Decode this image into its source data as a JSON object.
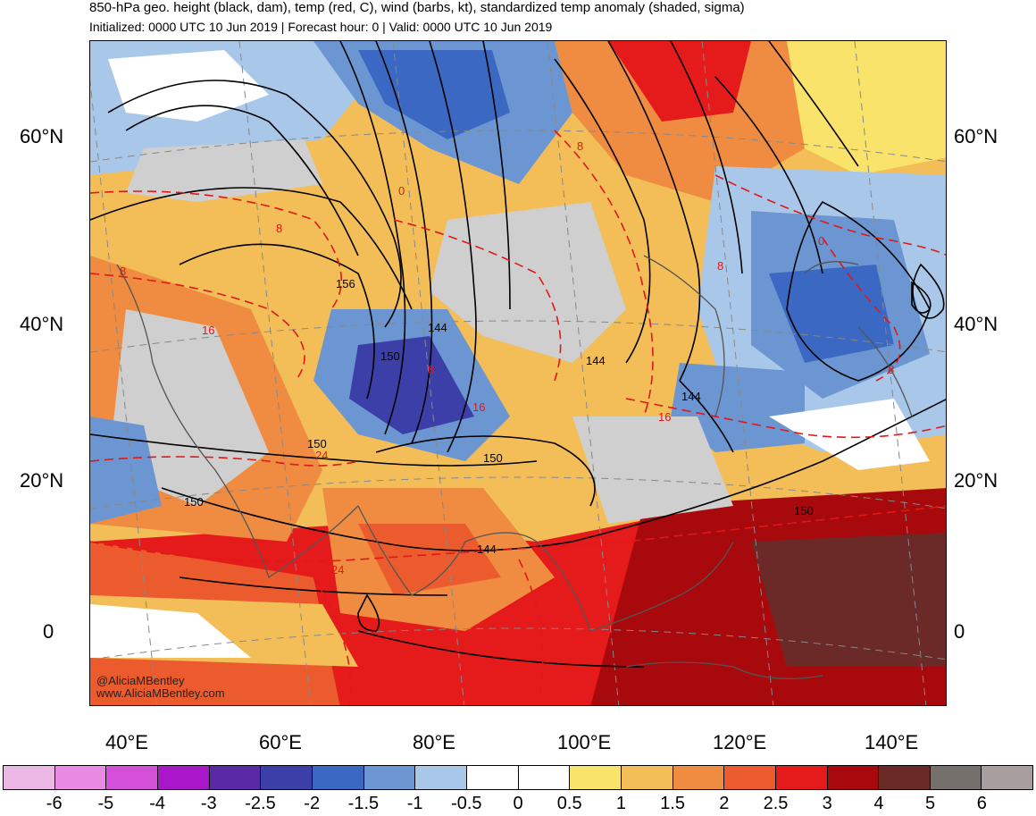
{
  "header": {
    "title": "850-hPa geo. height (black, dam), temp (red, C), wind (barbs, kt), standardized temp anomaly (shaded, sigma)",
    "subtitle": "Initialized: 0000 UTC 10 Jun 2019 | Forecast hour: 0 | Valid: 0000 UTC 10 Jun 2019"
  },
  "map": {
    "lat_labels": [
      "60°N",
      "40°N",
      "20°N",
      "0"
    ],
    "lon_labels": [
      "40°E",
      "60°E",
      "80°E",
      "100°E",
      "120°E",
      "140°E"
    ],
    "height_labels": [
      "156",
      "144",
      "150",
      "144",
      "144",
      "150",
      "150",
      "144",
      "150",
      "150"
    ],
    "temp_labels": [
      "8",
      "0",
      "8",
      "16",
      "8",
      "16",
      "24",
      "24",
      "8",
      "16",
      "0",
      "8",
      "8"
    ],
    "credit_handle": "@AliciaMBentley",
    "credit_url": "www.AliciaMBentley.com"
  },
  "colorbar": {
    "labels": [
      "-6",
      "-5",
      "-4",
      "-3",
      "-2.5",
      "-2",
      "-1.5",
      "-1",
      "-0.5",
      "0",
      "0.5",
      "1",
      "1.5",
      "2",
      "2.5",
      "3",
      "4",
      "5",
      "6"
    ],
    "colors": [
      "#ebb8e6",
      "#e88ae3",
      "#d450d8",
      "#a818c9",
      "#5a2aa6",
      "#3d3fa8",
      "#3a68c2",
      "#6c96d2",
      "#a9c8e9",
      "#ffffff",
      "#ffffff",
      "#fae36a",
      "#f3be58",
      "#ef8c41",
      "#ec5b2d",
      "#e51a1b",
      "#a8090d",
      "#6b2a28",
      "#76706c",
      "#a89e9e"
    ]
  }
}
